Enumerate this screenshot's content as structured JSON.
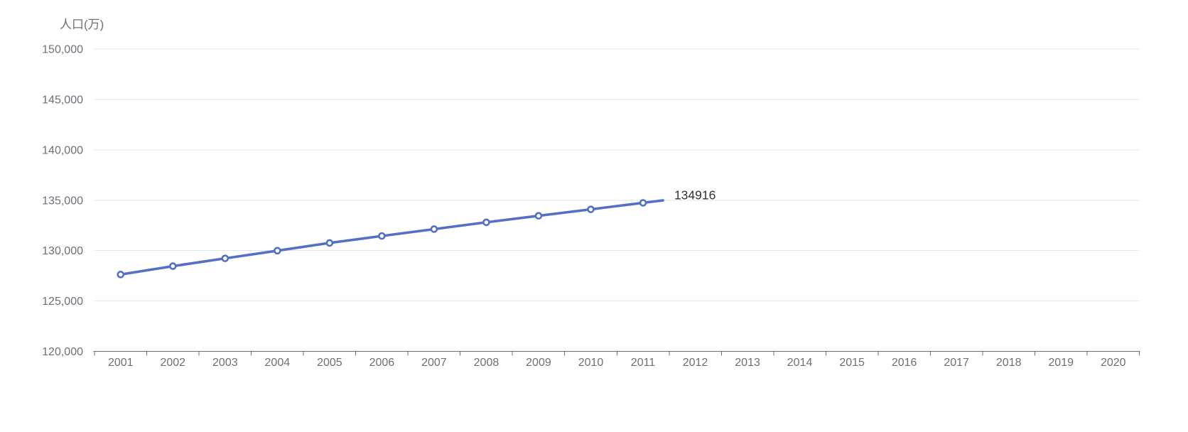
{
  "chart_data": {
    "type": "line",
    "title": "",
    "ylabel": "人口(万)",
    "xlabel": "",
    "x_categories": [
      "2001",
      "2002",
      "2003",
      "2004",
      "2005",
      "2006",
      "2007",
      "2008",
      "2009",
      "2010",
      "2011",
      "2012",
      "2013",
      "2014",
      "2015",
      "2016",
      "2017",
      "2018",
      "2019",
      "2020"
    ],
    "series": [
      {
        "name": "人口",
        "x": [
          "2001",
          "2002",
          "2003",
          "2004",
          "2005",
          "2006",
          "2007",
          "2008",
          "2009",
          "2010",
          "2011"
        ],
        "values": [
          127627,
          128453,
          129227,
          129988,
          130756,
          131448,
          132129,
          132802,
          133450,
          134091,
          134735
        ],
        "end_label": "134916",
        "line_tip_fraction_past_last_point": 0.38,
        "marker": "hollow-circle"
      }
    ],
    "y_axis": {
      "ylim": [
        120000,
        150000
      ],
      "ticks": [
        {
          "value": 120000,
          "label": "120,000"
        },
        {
          "value": 125000,
          "label": "125,000"
        },
        {
          "value": 130000,
          "label": "130,000"
        },
        {
          "value": 135000,
          "label": "135,000"
        },
        {
          "value": 140000,
          "label": "140,000"
        },
        {
          "value": 145000,
          "label": "145,000"
        },
        {
          "value": 150000,
          "label": "150,000"
        }
      ]
    },
    "grid": true,
    "legend": false,
    "layout_hint": "legend none; y-axis name above labels; x ticks between categories",
    "colors": {
      "line": "#5470C6",
      "marker_fill": "#FFFFFF",
      "grid_line": "#E0E6F1",
      "axis_line": "#6E7079",
      "axis_text": "#6E7079",
      "end_label_text": "#333333",
      "background": "#FFFFFF"
    }
  }
}
